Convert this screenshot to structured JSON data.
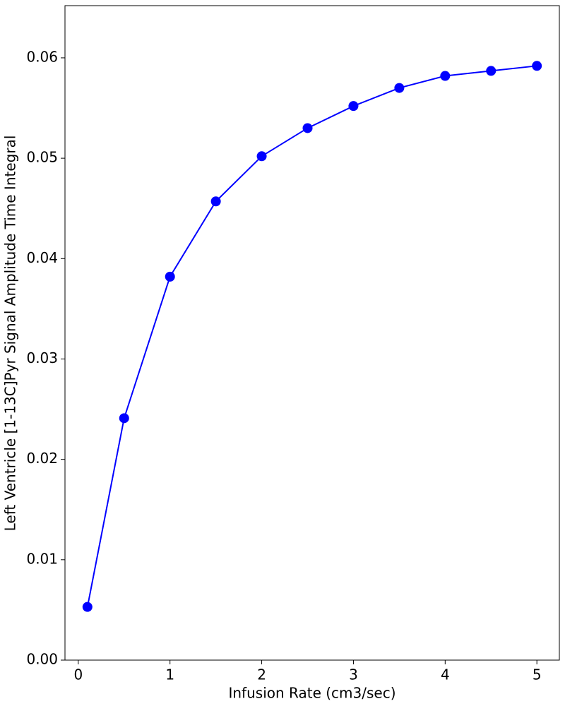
{
  "chart_data": {
    "type": "line",
    "xlabel": "Infusion Rate (cm3/sec)",
    "ylabel": "Left Ventricle [1-13C]Pyr Signal Amplitude Time Integral",
    "x": [
      0.1,
      0.5,
      1,
      1.5,
      2,
      2.5,
      3,
      3.5,
      4,
      4.5,
      5
    ],
    "series": [
      {
        "color": "#0000ff",
        "values": [
          0.0053,
          0.0241,
          0.0382,
          0.0457,
          0.0502,
          0.053,
          0.0552,
          0.057,
          0.0582,
          0.0587,
          0.0592
        ]
      }
    ],
    "xlim": [
      -0.145,
      5.245
    ],
    "ylim": [
      0,
      0.0652
    ],
    "xticks": [
      0,
      1,
      2,
      3,
      4,
      5
    ],
    "yticks": [
      {
        "value": 0,
        "label": "0.00"
      },
      {
        "value": 0.01,
        "label": "0.01"
      },
      {
        "value": 0.02,
        "label": "0.02"
      },
      {
        "value": 0.03,
        "label": "0.03"
      },
      {
        "value": 0.04,
        "label": "0.04"
      },
      {
        "value": 0.05,
        "label": "0.05"
      },
      {
        "value": 0.06,
        "label": "0.06"
      }
    ],
    "markers": true,
    "grid": false
  }
}
